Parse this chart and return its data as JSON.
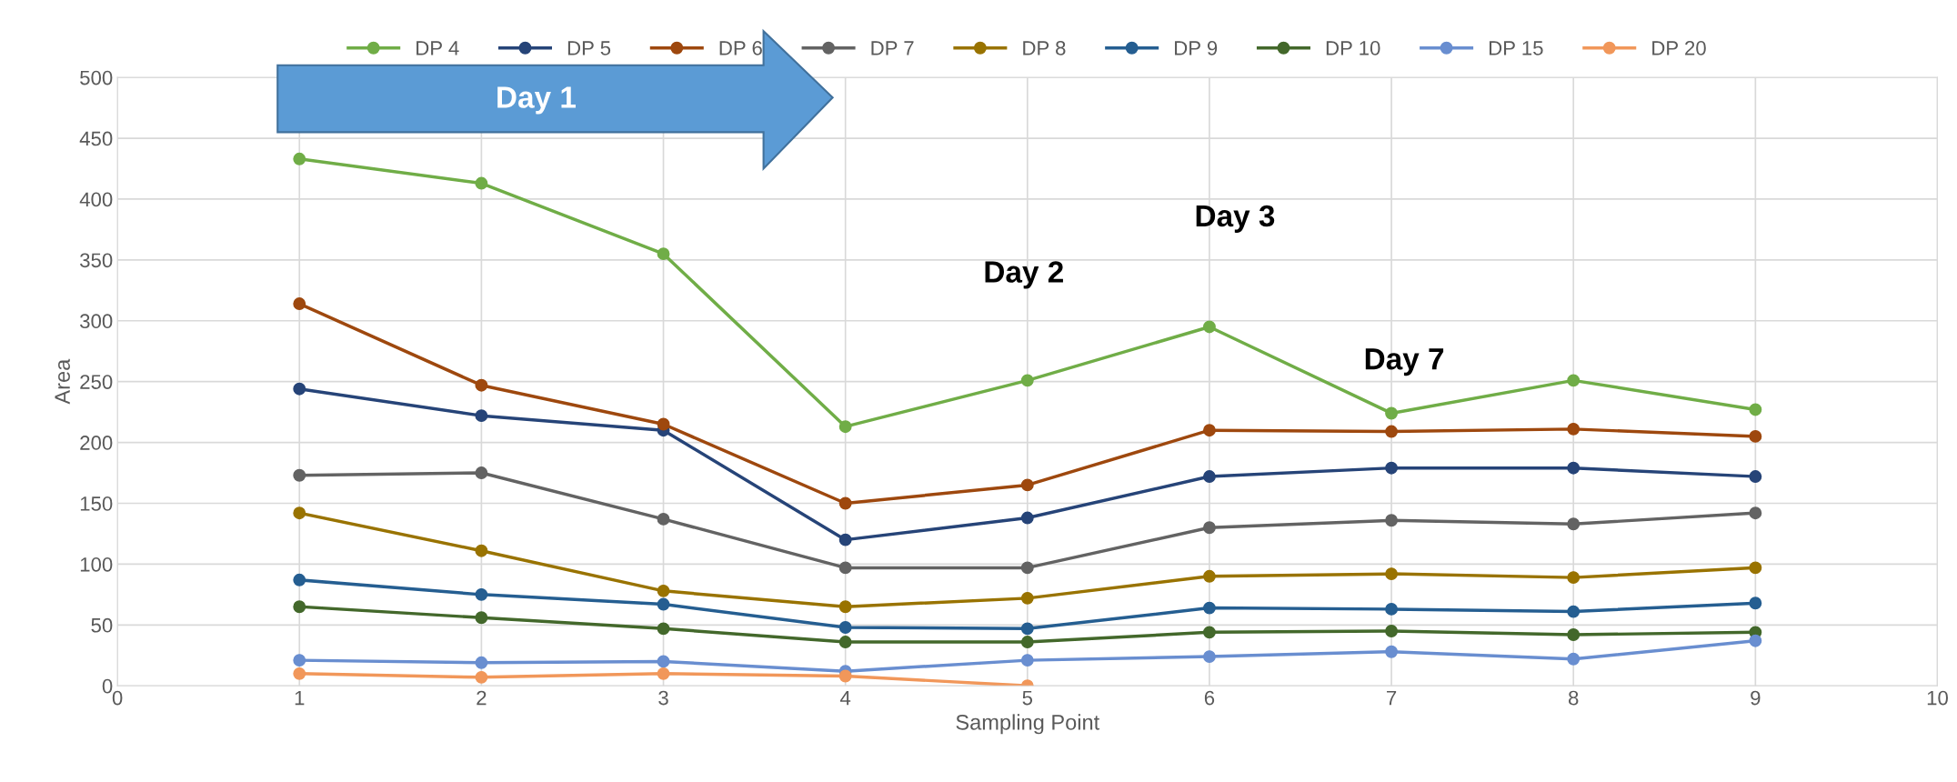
{
  "chart_data": {
    "type": "line",
    "xlabel": "Sampling Point",
    "ylabel": "Area",
    "x": [
      1,
      2,
      3,
      4,
      5,
      6,
      7,
      8,
      9
    ],
    "xlim": [
      0,
      10
    ],
    "xticks": [
      0,
      1,
      2,
      3,
      4,
      5,
      6,
      7,
      8,
      9,
      10
    ],
    "ylim": [
      0,
      500
    ],
    "yticks": [
      0,
      50,
      100,
      150,
      200,
      250,
      300,
      350,
      400,
      450,
      500
    ],
    "grid": true,
    "legend": "top",
    "marker": "circle",
    "line_style": "solid",
    "series": [
      {
        "name": "DP 4",
        "color": "#70ad47",
        "values": [
          433,
          413,
          355,
          213,
          251,
          295,
          224,
          251,
          227
        ]
      },
      {
        "name": "DP 5",
        "color": "#264478",
        "values": [
          244,
          222,
          210,
          120,
          138,
          172,
          179,
          179,
          172
        ]
      },
      {
        "name": "DP 6",
        "color": "#9e480e",
        "values": [
          314,
          247,
          215,
          150,
          165,
          210,
          209,
          211,
          205
        ]
      },
      {
        "name": "DP 7",
        "color": "#636363",
        "values": [
          173,
          175,
          137,
          97,
          97,
          130,
          136,
          133,
          142
        ]
      },
      {
        "name": "DP 8",
        "color": "#997300",
        "values": [
          142,
          111,
          78,
          65,
          72,
          90,
          92,
          89,
          97
        ]
      },
      {
        "name": "DP 9",
        "color": "#255e91",
        "values": [
          87,
          75,
          67,
          48,
          47,
          64,
          63,
          61,
          68
        ]
      },
      {
        "name": "DP 10",
        "color": "#43682b",
        "values": [
          65,
          56,
          47,
          36,
          36,
          44,
          45,
          42,
          44
        ]
      },
      {
        "name": "DP 15",
        "color": "#698ed0",
        "values": [
          21,
          19,
          20,
          12,
          21,
          24,
          28,
          22,
          37
        ]
      },
      {
        "name": "DP 20",
        "color": "#f1975a",
        "values": [
          10,
          7,
          10,
          8,
          0,
          null,
          null,
          null,
          null
        ]
      }
    ],
    "annotations": [
      "Day 1",
      "Day 2",
      "Day 3",
      "Day 7"
    ]
  }
}
